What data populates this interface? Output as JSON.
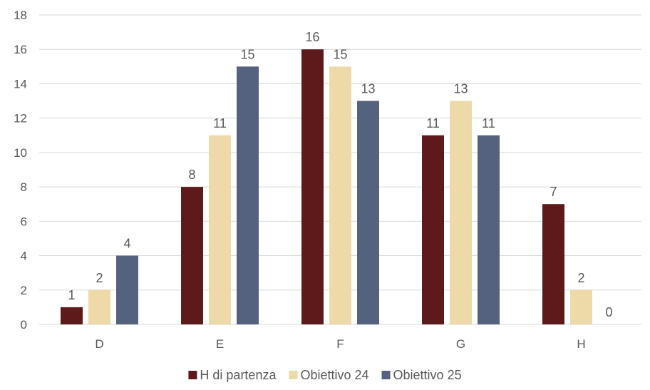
{
  "chart_data": {
    "type": "bar",
    "title": "",
    "xlabel": "",
    "ylabel": "",
    "categories": [
      "D",
      "E",
      "F",
      "G",
      "H"
    ],
    "series": [
      {
        "name": "H di partenza",
        "values": [
          1,
          8,
          16,
          11,
          7
        ],
        "color": "#5e1a1a"
      },
      {
        "name": "Obiettivo 24",
        "values": [
          2,
          11,
          15,
          13,
          2
        ],
        "color": "#eed9a8"
      },
      {
        "name": "Obiettivo 25",
        "values": [
          4,
          15,
          13,
          11,
          0
        ],
        "color": "#55627f"
      }
    ],
    "yticks": [
      0,
      2,
      4,
      6,
      8,
      10,
      12,
      14,
      16,
      18
    ],
    "ylim": [
      0,
      18
    ],
    "grid": true,
    "legend_position": "bottom",
    "data_labels": true
  }
}
